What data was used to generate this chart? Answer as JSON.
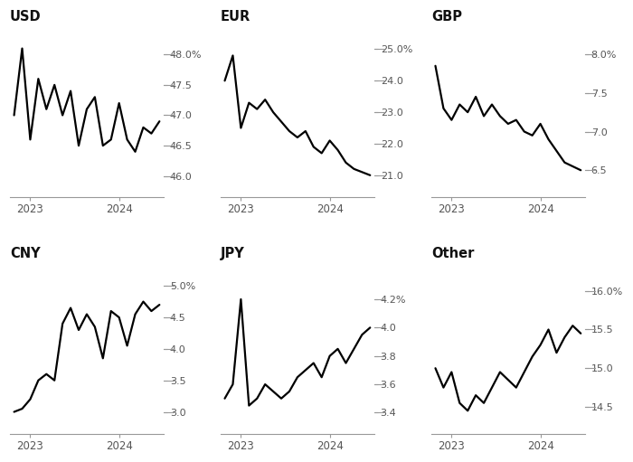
{
  "subplots": [
    {
      "title": "USD",
      "yticks": [
        46.0,
        46.5,
        47.0,
        47.5,
        48.0
      ],
      "ytick_labels": [
        "46.0",
        "46.5",
        "47.0",
        "47.5",
        "48.0%"
      ],
      "ylim": [
        45.65,
        48.45
      ],
      "data": [
        47.0,
        48.1,
        46.6,
        47.6,
        47.1,
        47.5,
        47.0,
        47.4,
        46.5,
        47.1,
        47.3,
        46.5,
        46.6,
        47.2,
        46.6,
        46.4,
        46.8,
        46.7,
        46.9
      ]
    },
    {
      "title": "EUR",
      "yticks": [
        21.0,
        22.0,
        23.0,
        24.0,
        25.0
      ],
      "ytick_labels": [
        "21.0",
        "22.0",
        "23.0",
        "24.0",
        "25.0%"
      ],
      "ylim": [
        20.3,
        25.7
      ],
      "data": [
        24.0,
        24.8,
        22.5,
        23.3,
        23.1,
        23.4,
        23.0,
        22.7,
        22.4,
        22.2,
        22.4,
        21.9,
        21.7,
        22.1,
        21.8,
        21.4,
        21.2,
        21.1,
        21.0
      ]
    },
    {
      "title": "GBP",
      "yticks": [
        6.5,
        7.0,
        7.5,
        8.0
      ],
      "ytick_labels": [
        "6.5",
        "7.0",
        "7.5",
        "8.0%"
      ],
      "ylim": [
        6.15,
        8.35
      ],
      "data": [
        7.85,
        7.3,
        7.15,
        7.35,
        7.25,
        7.45,
        7.2,
        7.35,
        7.2,
        7.1,
        7.15,
        7.0,
        6.95,
        7.1,
        6.9,
        6.75,
        6.6,
        6.55,
        6.5
      ]
    },
    {
      "title": "CNY",
      "yticks": [
        3.0,
        3.5,
        4.0,
        4.5,
        5.0
      ],
      "ytick_labels": [
        "3.0",
        "3.5",
        "4.0",
        "4.5",
        "5.0%"
      ],
      "ylim": [
        2.65,
        5.35
      ],
      "data": [
        3.0,
        3.05,
        3.2,
        3.5,
        3.6,
        3.5,
        4.4,
        4.65,
        4.3,
        4.55,
        4.35,
        3.85,
        4.6,
        4.5,
        4.05,
        4.55,
        4.75,
        4.6,
        4.7
      ]
    },
    {
      "title": "JPY",
      "yticks": [
        3.4,
        3.6,
        3.8,
        4.0,
        4.2
      ],
      "ytick_labels": [
        "3.4",
        "3.6",
        "3.8",
        "4.0",
        "4.2%"
      ],
      "ylim": [
        3.25,
        4.45
      ],
      "data": [
        3.5,
        3.6,
        4.2,
        3.45,
        3.5,
        3.6,
        3.55,
        3.5,
        3.55,
        3.65,
        3.7,
        3.75,
        3.65,
        3.8,
        3.85,
        3.75,
        3.85,
        3.95,
        4.0
      ]
    },
    {
      "title": "Other",
      "yticks": [
        14.5,
        15.0,
        15.5,
        16.0
      ],
      "ytick_labels": [
        "14.5",
        "15.0",
        "15.5",
        "16.0%"
      ],
      "ylim": [
        14.15,
        16.35
      ],
      "data": [
        15.0,
        14.75,
        14.95,
        14.55,
        14.45,
        14.65,
        14.55,
        14.75,
        14.95,
        14.85,
        14.75,
        14.95,
        15.15,
        15.3,
        15.5,
        15.2,
        15.4,
        15.55,
        15.45
      ]
    }
  ],
  "n_points": 19,
  "line_color": "#000000",
  "line_width": 1.6,
  "bg_color": "#ffffff",
  "title_fontsize": 10.5,
  "tick_fontsize": 8,
  "xlabel_fontsize": 8.5,
  "tick_label_color": "#555555",
  "spine_color": "#999999",
  "tickmark_color": "#999999"
}
